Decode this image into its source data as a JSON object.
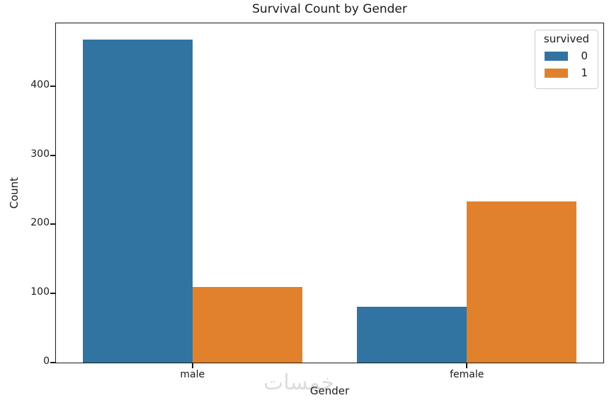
{
  "title": "Survival Count by Gender",
  "watermark_text": "خمسات",
  "colors": {
    "survived_0": "#3274a1",
    "survived_1": "#e1812c",
    "spine": "#1a1a1a",
    "text": "#1a1a1a",
    "legend_border": "#cccccc",
    "watermark": "#dcdcdc",
    "background": "#ffffff"
  },
  "chart_data": {
    "type": "bar",
    "title": "Survival Count by Gender",
    "xlabel": "Gender",
    "ylabel": "Count",
    "categories": [
      "male",
      "female"
    ],
    "series": [
      {
        "name": "0",
        "values": [
          468,
          81
        ],
        "color": "#3274a1"
      },
      {
        "name": "1",
        "values": [
          109,
          233
        ],
        "color": "#e1812c"
      }
    ],
    "ylim": [
      0,
      491
    ],
    "yticks": [
      0,
      100,
      200,
      300,
      400
    ],
    "grid": false,
    "legend": {
      "title": "survived",
      "entries": [
        "0",
        "1"
      ],
      "position": "upper right"
    }
  }
}
